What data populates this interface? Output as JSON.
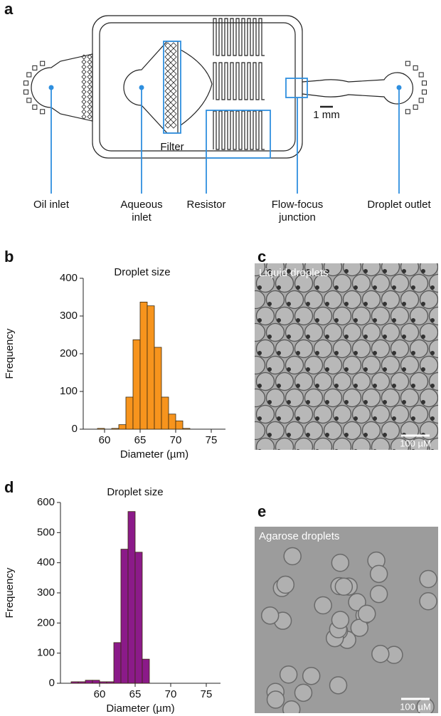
{
  "panel_labels": [
    "a",
    "b",
    "c",
    "d",
    "e"
  ],
  "diagram": {
    "filter": "Filter",
    "scale_bar": "1 mm",
    "labels": [
      "Oil inlet",
      "Aqueous inlet",
      "Resistor",
      "Flow-focus junction",
      "Droplet outlet"
    ]
  },
  "images": [
    {
      "label": "Liquid droplets",
      "scale_bar": "100 µM"
    },
    {
      "label": "Agarose droplets",
      "scale_bar": "100 µM"
    }
  ],
  "chart_data": [
    {
      "type": "histogram",
      "title": "Droplet size",
      "x_label": "Diameter (µm)",
      "y_label": "Frequency",
      "bins": [
        59,
        60,
        61,
        62,
        63,
        64,
        65,
        66,
        67,
        68,
        69,
        70,
        71,
        72
      ],
      "values": [
        2,
        0,
        2,
        12,
        85,
        237,
        337,
        327,
        217,
        85,
        40,
        22,
        2
      ],
      "color": "#f7941d",
      "xlim": [
        57,
        77
      ],
      "ylim": [
        0,
        400
      ],
      "xticks": [
        60,
        65,
        70,
        75
      ],
      "yticks": [
        0,
        100,
        200,
        300,
        400
      ]
    },
    {
      "type": "histogram",
      "title": "Droplet size",
      "x_label": "Diameter (µm)",
      "y_label": "Frequency",
      "bins": [
        56,
        57,
        58,
        59,
        60,
        61,
        62,
        63,
        64,
        65,
        66,
        67
      ],
      "values": [
        5,
        5,
        10,
        10,
        5,
        5,
        135,
        445,
        570,
        435,
        80
      ],
      "color": "#8b1a89",
      "xlim": [
        54.5,
        77
      ],
      "ylim": [
        0,
        600
      ],
      "xticks": [
        60,
        65,
        70,
        75
      ],
      "yticks": [
        0,
        100,
        200,
        300,
        400,
        500,
        600
      ]
    }
  ]
}
